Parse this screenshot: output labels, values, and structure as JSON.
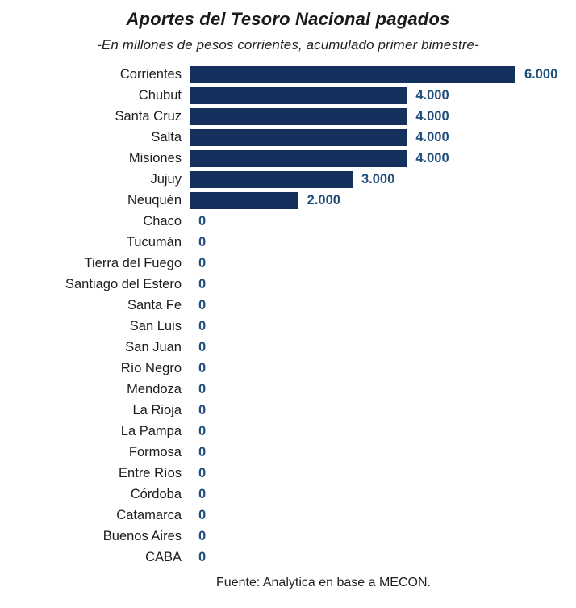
{
  "header": {
    "title": "Aportes del Tesoro Nacional pagados",
    "subtitle": "-En millones de pesos corrientes, acumulado primer bimestre-"
  },
  "footer": {
    "source": "Fuente: Analytica en base a MECON."
  },
  "colors": {
    "bar": "#14305d",
    "value_label": "#1f4e7c",
    "axis_line": "#d6d6d6",
    "text": "#1c1c1c"
  },
  "chart_data": {
    "type": "bar",
    "orientation": "horizontal",
    "title": "Aportes del Tesoro Nacional pagados",
    "subtitle": "-En millones de pesos corrientes, acumulado primer bimestre-",
    "xlabel": "",
    "ylabel": "",
    "xlim": [
      0,
      6000
    ],
    "grid": false,
    "legend": false,
    "categories": [
      "Corrientes",
      "Chubut",
      "Santa Cruz",
      "Salta",
      "Misiones",
      "Jujuy",
      "Neuquén",
      "Chaco",
      "Tucumán",
      "Tierra del Fuego",
      "Santiago del Estero",
      "Santa Fe",
      "San Luis",
      "San Juan",
      "Río Negro",
      "Mendoza",
      "La Rioja",
      "La Pampa",
      "Formosa",
      "Entre Ríos",
      "Córdoba",
      "Catamarca",
      "Buenos Aires",
      "CABA"
    ],
    "values": [
      6000,
      4000,
      4000,
      4000,
      4000,
      3000,
      2000,
      0,
      0,
      0,
      0,
      0,
      0,
      0,
      0,
      0,
      0,
      0,
      0,
      0,
      0,
      0,
      0,
      0
    ],
    "value_labels": [
      "6.000",
      "4.000",
      "4.000",
      "4.000",
      "4.000",
      "3.000",
      "2.000",
      "0",
      "0",
      "0",
      "0",
      "0",
      "0",
      "0",
      "0",
      "0",
      "0",
      "0",
      "0",
      "0",
      "0",
      "0",
      "0",
      "0"
    ]
  }
}
